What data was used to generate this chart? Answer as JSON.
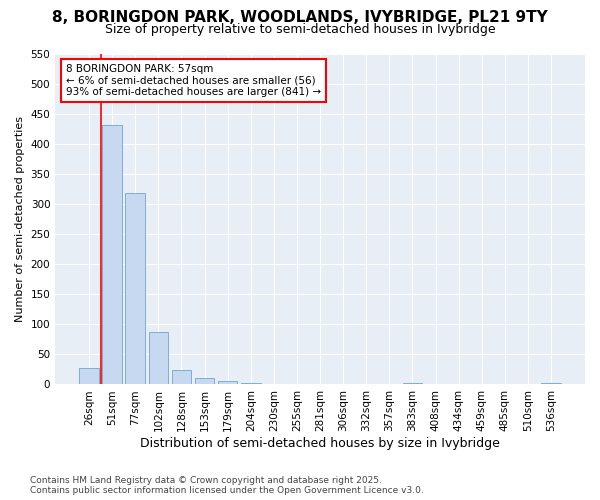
{
  "title": "8, BORINGDON PARK, WOODLANDS, IVYBRIDGE, PL21 9TY",
  "subtitle": "Size of property relative to semi-detached houses in Ivybridge",
  "xlabel": "Distribution of semi-detached houses by size in Ivybridge",
  "ylabel": "Number of semi-detached properties",
  "categories": [
    "26sqm",
    "51sqm",
    "77sqm",
    "102sqm",
    "128sqm",
    "153sqm",
    "179sqm",
    "204sqm",
    "230sqm",
    "255sqm",
    "281sqm",
    "306sqm",
    "332sqm",
    "357sqm",
    "383sqm",
    "408sqm",
    "434sqm",
    "459sqm",
    "485sqm",
    "510sqm",
    "536sqm"
  ],
  "values": [
    28,
    432,
    318,
    87,
    24,
    11,
    5,
    3,
    0,
    0,
    0,
    0,
    0,
    0,
    3,
    0,
    0,
    0,
    0,
    0,
    3
  ],
  "bar_color": "#c6d9f0",
  "bar_edge_color": "#7bafd4",
  "highlight_color": "#ff0000",
  "annotation_text": "8 BORINGDON PARK: 57sqm\n← 6% of semi-detached houses are smaller (56)\n93% of semi-detached houses are larger (841) →",
  "annotation_box_color": "#ffffff",
  "annotation_box_edge_color": "#ff0000",
  "ylim": [
    0,
    550
  ],
  "yticks": [
    0,
    50,
    100,
    150,
    200,
    250,
    300,
    350,
    400,
    450,
    500,
    550
  ],
  "footer": "Contains HM Land Registry data © Crown copyright and database right 2025.\nContains public sector information licensed under the Open Government Licence v3.0.",
  "fig_bg_color": "#ffffff",
  "plot_bg_color": "#e8eef5",
  "grid_color": "#ffffff",
  "title_fontsize": 11,
  "subtitle_fontsize": 9,
  "tick_fontsize": 7.5,
  "ylabel_fontsize": 8,
  "xlabel_fontsize": 9,
  "footer_fontsize": 6.5
}
